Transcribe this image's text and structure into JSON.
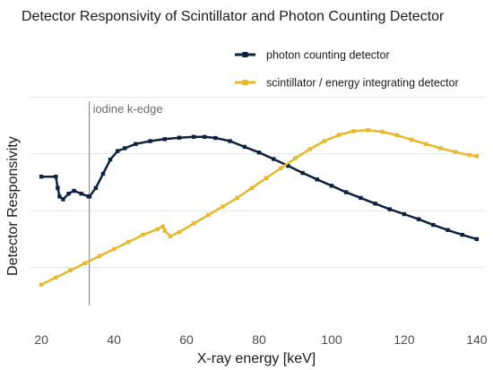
{
  "chart_data": {
    "type": "line",
    "title": "Detector Responsivity of Scintillator and Photon Counting Detector",
    "xlabel": "X-ray energy [keV]",
    "ylabel": "Detector Responsivity",
    "xlim": [
      17,
      142
    ],
    "ylim": [
      0,
      1
    ],
    "xticks": [
      20,
      40,
      60,
      80,
      100,
      120,
      140
    ],
    "grid": "horizontal",
    "legend_position": "top-right",
    "annotation": {
      "label": "iodine k-edge",
      "x": 33.2
    },
    "series": [
      {
        "name": "photon counting detector",
        "color": "#0d2240",
        "points": [
          [
            20,
            0.52
          ],
          [
            24,
            0.52
          ],
          [
            24.5,
            0.48
          ],
          [
            25,
            0.45
          ],
          [
            26,
            0.44
          ],
          [
            27.5,
            0.46
          ],
          [
            29,
            0.47
          ],
          [
            31,
            0.46
          ],
          [
            33,
            0.45
          ],
          [
            33.3,
            0.45
          ],
          [
            35,
            0.48
          ],
          [
            37,
            0.53
          ],
          [
            39,
            0.58
          ],
          [
            41,
            0.61
          ],
          [
            43,
            0.62
          ],
          [
            46,
            0.635
          ],
          [
            50,
            0.645
          ],
          [
            54,
            0.652
          ],
          [
            58,
            0.657
          ],
          [
            62,
            0.66
          ],
          [
            65,
            0.66
          ],
          [
            68,
            0.656
          ],
          [
            72,
            0.645
          ],
          [
            76,
            0.625
          ],
          [
            80,
            0.605
          ],
          [
            84,
            0.582
          ],
          [
            88,
            0.558
          ],
          [
            92,
            0.533
          ],
          [
            96,
            0.51
          ],
          [
            100,
            0.488
          ],
          [
            104,
            0.465
          ],
          [
            108,
            0.445
          ],
          [
            112,
            0.425
          ],
          [
            116,
            0.405
          ],
          [
            120,
            0.388
          ],
          [
            124,
            0.37
          ],
          [
            128,
            0.35
          ],
          [
            132,
            0.332
          ],
          [
            136,
            0.315
          ],
          [
            140,
            0.3
          ]
        ]
      },
      {
        "name": "scintillator / energy integrating detector",
        "color": "#e8b829",
        "points": [
          [
            20,
            0.14
          ],
          [
            24,
            0.165
          ],
          [
            28,
            0.19
          ],
          [
            32,
            0.215
          ],
          [
            36,
            0.24
          ],
          [
            40,
            0.265
          ],
          [
            44,
            0.29
          ],
          [
            48,
            0.315
          ],
          [
            52,
            0.335
          ],
          [
            53.5,
            0.345
          ],
          [
            54,
            0.33
          ],
          [
            55.5,
            0.31
          ],
          [
            58,
            0.325
          ],
          [
            62,
            0.355
          ],
          [
            66,
            0.385
          ],
          [
            70,
            0.415
          ],
          [
            74,
            0.445
          ],
          [
            78,
            0.48
          ],
          [
            82,
            0.515
          ],
          [
            86,
            0.55
          ],
          [
            90,
            0.585
          ],
          [
            94,
            0.617
          ],
          [
            98,
            0.645
          ],
          [
            102,
            0.667
          ],
          [
            106,
            0.68
          ],
          [
            110,
            0.684
          ],
          [
            114,
            0.678
          ],
          [
            118,
            0.666
          ],
          [
            122,
            0.65
          ],
          [
            126,
            0.635
          ],
          [
            130,
            0.62
          ],
          [
            134,
            0.607
          ],
          [
            138,
            0.596
          ],
          [
            140,
            0.592
          ]
        ]
      }
    ]
  }
}
